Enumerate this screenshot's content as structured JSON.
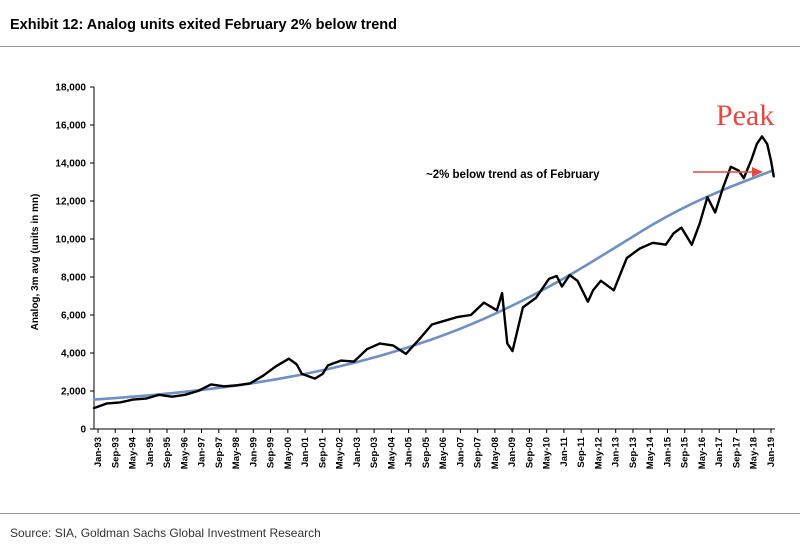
{
  "title": "Exhibit 12: Analog units exited February 2% below trend",
  "source": "Source: SIA, Goldman Sachs Global Investment Research",
  "colors": {
    "actual": "#000000",
    "trend": "#6f8fc6",
    "peak": "#e8473f",
    "arrow": "#e8473f"
  },
  "chart_data": {
    "type": "line",
    "title": "Exhibit 12: Analog units exited February 2% below trend",
    "ylabel": "Analog, 3m avg (units in mn)",
    "xlabel": "",
    "ylim": [
      0,
      18000
    ],
    "yticks": [
      "0",
      "2,000",
      "4,000",
      "6,000",
      "8,000",
      "10,000",
      "12,000",
      "14,000",
      "16,000",
      "18,000"
    ],
    "x_tick_labels": [
      "Jan-93",
      "Sep-93",
      "May-94",
      "Jan-95",
      "Sep-95",
      "May-96",
      "Jan-97",
      "Sep-97",
      "May-98",
      "Jan-99",
      "Sep-99",
      "May-00",
      "Jan-01",
      "Sep-01",
      "May-02",
      "Jan-03",
      "Sep-03",
      "May-04",
      "Jan-05",
      "Sep-05",
      "May-06",
      "Jan-07",
      "Sep-07",
      "May-08",
      "Jan-09",
      "Sep-09",
      "May-10",
      "Jan-11",
      "Sep-11",
      "May-12",
      "Jan-13",
      "Sep-13",
      "May-14",
      "Jan-15",
      "Sep-15",
      "May-16",
      "Jan-17",
      "Sep-17",
      "May-18",
      "Jan-19"
    ],
    "grid": false,
    "legend": "none",
    "series": [
      {
        "role": "actual",
        "x": [
          1993.0,
          1993.5,
          1994.0,
          1994.5,
          1995.0,
          1995.5,
          1996.0,
          1996.5,
          1997.0,
          1997.5,
          1998.0,
          1998.5,
          1999.0,
          1999.5,
          2000.0,
          2000.5,
          2000.8,
          2001.0,
          2001.5,
          2001.8,
          2002.0,
          2002.5,
          2003.0,
          2003.5,
          2004.0,
          2004.5,
          2005.0,
          2005.5,
          2006.0,
          2006.5,
          2007.0,
          2007.5,
          2008.0,
          2008.5,
          2008.7,
          2008.9,
          2009.1,
          2009.5,
          2010.0,
          2010.5,
          2010.8,
          2011.0,
          2011.3,
          2011.6,
          2012.0,
          2012.2,
          2012.5,
          2013.0,
          2013.5,
          2014.0,
          2014.5,
          2015.0,
          2015.3,
          2015.6,
          2016.0,
          2016.3,
          2016.6,
          2016.9,
          2017.2,
          2017.5,
          2017.8,
          2018.0,
          2018.3,
          2018.5,
          2018.7,
          2018.9,
          2019.05,
          2019.15
        ],
        "values": [
          1100,
          1350,
          1400,
          1550,
          1600,
          1800,
          1700,
          1800,
          2000,
          2350,
          2250,
          2300,
          2400,
          2800,
          3300,
          3700,
          3400,
          2900,
          2650,
          2900,
          3350,
          3600,
          3550,
          4200,
          4500,
          4400,
          3950,
          4700,
          5500,
          5700,
          5900,
          6000,
          6650,
          6250,
          7150,
          4500,
          4100,
          6400,
          6900,
          7900,
          8050,
          7500,
          8100,
          7800,
          6700,
          7300,
          7800,
          7300,
          9000,
          9500,
          9800,
          9700,
          10300,
          10600,
          9700,
          10800,
          12200,
          11400,
          12700,
          13800,
          13600,
          13200,
          14200,
          15000,
          15400,
          15000,
          14100,
          13300
        ]
      },
      {
        "role": "trend",
        "x": [
          1993.0,
          1995.0,
          1997.0,
          1999.0,
          2001.0,
          2003.0,
          2005.0,
          2007.0,
          2009.0,
          2011.0,
          2013.0,
          2015.0,
          2017.0,
          2019.1
        ],
        "values": [
          1550,
          1750,
          2020,
          2380,
          2850,
          3460,
          4230,
          5200,
          6400,
          7850,
          9500,
          11200,
          12500,
          13600
        ]
      }
    ],
    "annotations": [
      {
        "text": "~2% below trend as of February"
      },
      {
        "text": "Peak"
      }
    ]
  }
}
